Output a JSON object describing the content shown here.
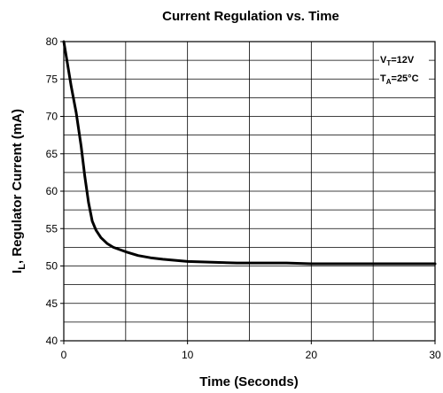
{
  "chart_data": {
    "type": "line",
    "title": "Current Regulation vs. Time",
    "xlabel": "Time (Seconds)",
    "ylabel": {
      "main": "I",
      "sub": "L",
      "rest": ", Regulator Current  (mA)"
    },
    "xlim": [
      0,
      30
    ],
    "ylim": [
      40,
      80
    ],
    "xticks": [
      0,
      10,
      20,
      30
    ],
    "xtick_labels": [
      "0",
      "10",
      "20",
      "30"
    ],
    "yticks": [
      40,
      45,
      50,
      55,
      60,
      65,
      70,
      75,
      80
    ],
    "ytick_labels": [
      "40",
      "45",
      "50",
      "55",
      "60",
      "65",
      "70",
      "75",
      "80"
    ],
    "grid": true,
    "annotations": [
      {
        "main": "V",
        "sub": "T",
        "rest": "=12V"
      },
      {
        "main": "T",
        "sub": "A",
        "rest": "=25°C"
      }
    ],
    "series": [
      {
        "x": [
          0,
          0.3,
          0.6,
          1.0,
          1.4,
          1.7,
          2.0,
          2.3,
          2.6,
          3.0,
          3.5,
          4.0,
          5.0,
          6.0,
          7.0,
          8.0,
          10.0,
          12.0,
          14.0,
          16.0,
          18.0,
          20.0,
          22.0,
          24.0,
          26.0,
          28.0,
          30.0
        ],
        "y": [
          80.0,
          77.0,
          74.0,
          70.5,
          66.0,
          62.0,
          58.5,
          56.0,
          54.8,
          53.8,
          53.0,
          52.5,
          51.9,
          51.4,
          51.1,
          50.9,
          50.6,
          50.5,
          50.4,
          50.4,
          50.4,
          50.3,
          50.3,
          50.3,
          50.3,
          50.3,
          50.3
        ]
      }
    ]
  }
}
